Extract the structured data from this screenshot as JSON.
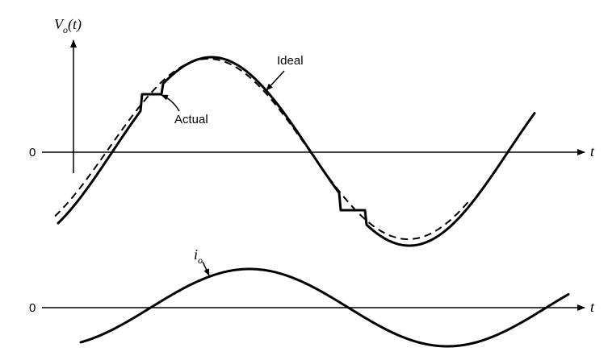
{
  "top_plot": {
    "y_axis_label_main": "V",
    "y_axis_label_sub": "o",
    "y_axis_label_suffix": "(t)",
    "zero_label": "0",
    "x_axis_label": "t",
    "label_ideal": "Ideal",
    "label_actual": "Actual"
  },
  "bottom_plot": {
    "curve_label_main": "i",
    "curve_label_sub": "o",
    "zero_label": "0",
    "x_axis_label": "t"
  }
}
